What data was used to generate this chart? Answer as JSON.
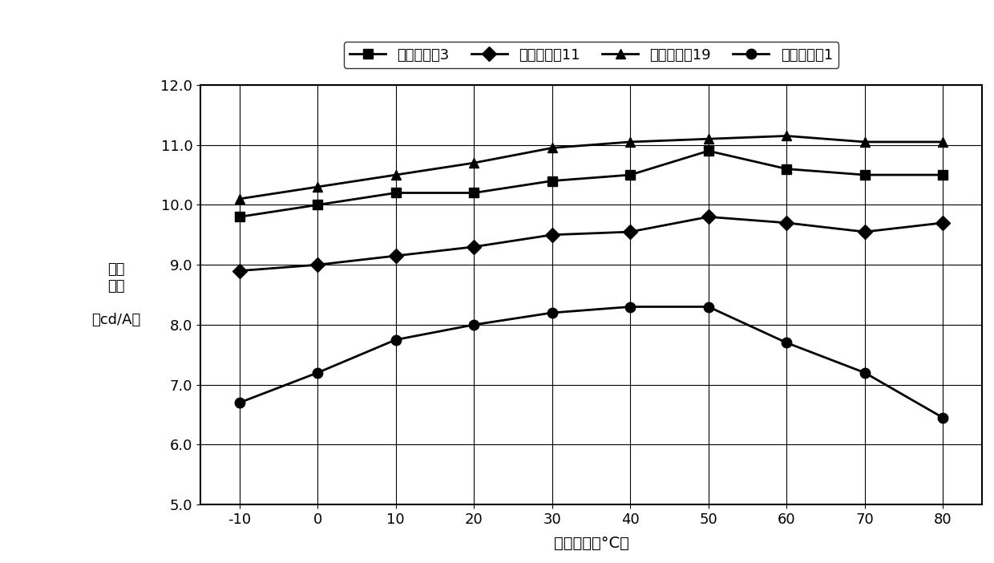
{
  "x": [
    -10,
    0,
    10,
    20,
    30,
    40,
    50,
    60,
    70,
    80
  ],
  "series": [
    {
      "label": "器件实施例3",
      "marker": "s",
      "values": [
        9.8,
        10.0,
        10.2,
        10.2,
        10.4,
        10.5,
        10.9,
        10.6,
        10.5,
        10.5
      ]
    },
    {
      "label": "器件实施例11",
      "marker": "D",
      "values": [
        8.9,
        9.0,
        9.15,
        9.3,
        9.5,
        9.55,
        9.8,
        9.7,
        9.55,
        9.7
      ]
    },
    {
      "label": "器件实施例19",
      "marker": "^",
      "values": [
        10.1,
        10.3,
        10.5,
        10.7,
        10.95,
        11.05,
        11.1,
        11.15,
        11.05,
        11.05
      ]
    },
    {
      "label": "器件比较例1",
      "marker": "o",
      "values": [
        6.7,
        7.2,
        7.75,
        8.0,
        8.2,
        8.3,
        8.3,
        7.7,
        7.2,
        6.45
      ]
    }
  ],
  "xlabel": "测量温度（°C）",
  "ylabel": "电流\n效率\n\n（cd/A）",
  "xlim": [
    -15,
    85
  ],
  "ylim": [
    5.0,
    12.0
  ],
  "yticks": [
    5.0,
    6.0,
    7.0,
    8.0,
    9.0,
    10.0,
    11.0,
    12.0
  ],
  "xticks": [
    -10,
    0,
    10,
    20,
    30,
    40,
    50,
    60,
    70,
    80
  ],
  "line_color": "#000000",
  "background_color": "#ffffff",
  "grid_color": "#000000"
}
